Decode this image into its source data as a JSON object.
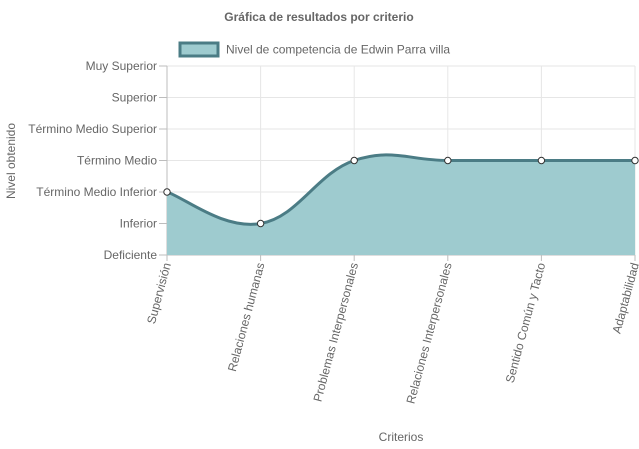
{
  "chart_data": {
    "type": "line",
    "title": "Gráfica de resultados por criterio",
    "xlabel": "Criterios",
    "ylabel": "Nivel obtenido",
    "categories": [
      "Supervisión",
      "Relaciones humanas",
      "Problemas Interpersonales",
      "Relaciones Interpersonales",
      "Sentido Común y Tacto",
      "Adaptabilidad"
    ],
    "y_levels": [
      "Deficiente",
      "Inferior",
      "Término Medio Inferior",
      "Término Medio",
      "Término Medio Superior",
      "Superior",
      "Muy Superior"
    ],
    "series": [
      {
        "name": "Nivel de competencia de Edwin Parra villa",
        "values": [
          2,
          1,
          3,
          3,
          3,
          3
        ],
        "fill": "true"
      }
    ],
    "ylim": [
      0,
      6
    ],
    "grid": "on",
    "legend_position": "top",
    "colors": {
      "line": "#4b7c85",
      "fill": "#9ecbcf",
      "grid": "#e6e6e6",
      "axis": "#bdbdbd",
      "point_fill": "#ffffff"
    }
  }
}
